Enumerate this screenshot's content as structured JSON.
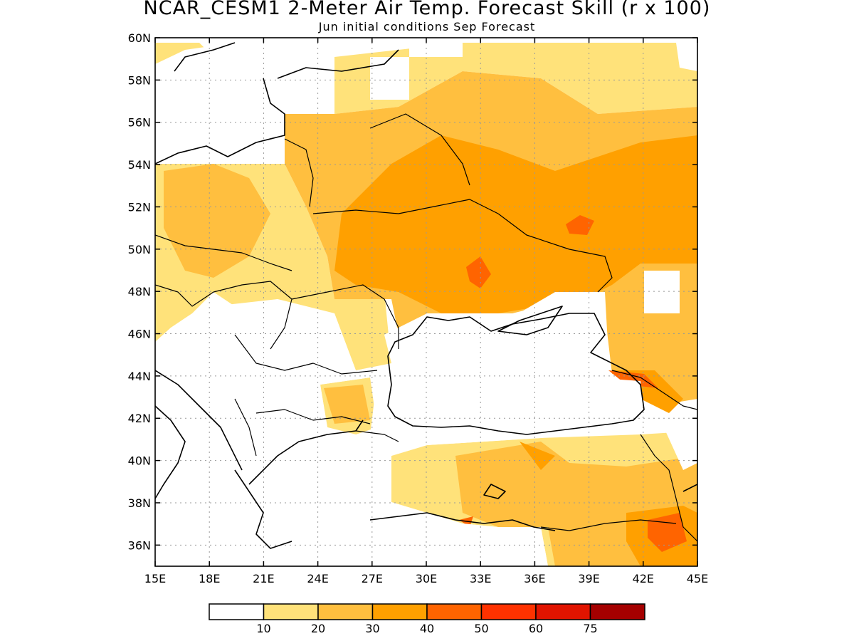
{
  "title": "NCAR_CESM1 2-Meter Air Temp. Forecast Skill (r x 100)",
  "subtitle": "Jun initial conditions  Sep Forecast",
  "map": {
    "lon_range": [
      15,
      45
    ],
    "lat_range": [
      35,
      60
    ],
    "x_ticks": [
      "15E",
      "18E",
      "21E",
      "24E",
      "27E",
      "30E",
      "33E",
      "36E",
      "39E",
      "42E",
      "45E"
    ],
    "y_ticks": [
      "60N",
      "58N",
      "56N",
      "54N",
      "52N",
      "50N",
      "48N",
      "46N",
      "44N",
      "42N",
      "40N",
      "38N",
      "36N"
    ],
    "grid": "dotted"
  },
  "colorbar": {
    "colors": [
      "#ffffff",
      "#ffe27a",
      "#ffbf3f",
      "#ffa000",
      "#ff6400",
      "#ff3200",
      "#e11400",
      "#a50000"
    ],
    "labels": [
      "10",
      "20",
      "30",
      "40",
      "50",
      "60",
      "75"
    ]
  }
}
